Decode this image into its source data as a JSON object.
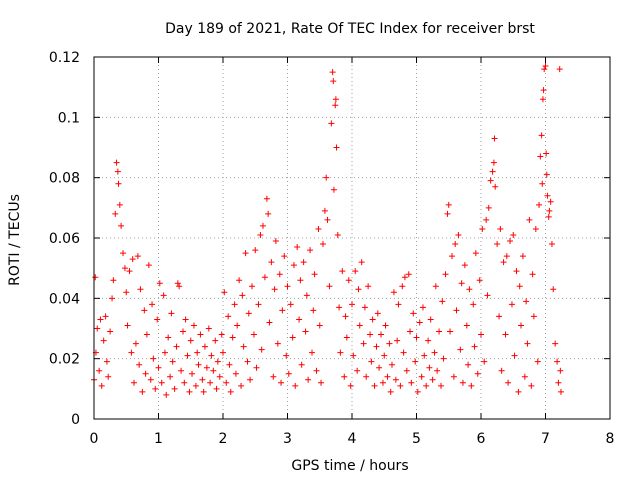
{
  "chart_data": {
    "type": "scatter",
    "title": "Day 189 of 2021, Rate Of TEC Index for receiver brst",
    "xlabel": "GPS time / hours",
    "ylabel": "ROTI / TECUs",
    "xlim": [
      0,
      8
    ],
    "ylim": [
      0,
      0.12
    ],
    "xticks": [
      "0",
      "1",
      "2",
      "3",
      "4",
      "5",
      "6",
      "7",
      "8"
    ],
    "yticks": [
      "0",
      "0.02",
      "0.04",
      "0.06",
      "0.08",
      "0.1",
      "0.12"
    ],
    "grid": true,
    "marker": "+",
    "color": "#ff0000",
    "series": [
      {
        "points": [
          [
            0.0,
            0.013
          ],
          [
            0.02,
            0.047
          ],
          [
            0.03,
            0.022
          ],
          [
            0.05,
            0.03
          ],
          [
            0.08,
            0.016
          ],
          [
            0.1,
            0.033
          ],
          [
            0.12,
            0.011
          ],
          [
            0.15,
            0.026
          ],
          [
            0.18,
            0.034
          ],
          [
            0.2,
            0.019
          ],
          [
            0.22,
            0.014
          ],
          [
            0.25,
            0.029
          ],
          [
            0.28,
            0.04
          ],
          [
            0.3,
            0.046
          ],
          [
            0.33,
            0.068
          ],
          [
            0.35,
            0.085
          ],
          [
            0.37,
            0.082
          ],
          [
            0.38,
            0.078
          ],
          [
            0.4,
            0.071
          ],
          [
            0.42,
            0.064
          ],
          [
            0.45,
            0.055
          ],
          [
            0.48,
            0.05
          ],
          [
            0.5,
            0.042
          ],
          [
            0.52,
            0.031
          ],
          [
            0.55,
            0.049
          ],
          [
            0.58,
            0.022
          ],
          [
            0.6,
            0.053
          ],
          [
            0.62,
            0.012
          ],
          [
            0.65,
            0.025
          ],
          [
            0.68,
            0.054
          ],
          [
            0.7,
            0.018
          ],
          [
            0.72,
            0.043
          ],
          [
            0.75,
            0.009
          ],
          [
            0.78,
            0.036
          ],
          [
            0.8,
            0.015
          ],
          [
            0.82,
            0.028
          ],
          [
            0.85,
            0.051
          ],
          [
            0.88,
            0.013
          ],
          [
            0.9,
            0.038
          ],
          [
            0.92,
            0.02
          ],
          [
            0.95,
            0.01
          ],
          [
            0.98,
            0.033
          ],
          [
            1.0,
            0.017
          ],
          [
            1.02,
            0.045
          ],
          [
            1.05,
            0.012
          ],
          [
            1.08,
            0.041
          ],
          [
            1.1,
            0.022
          ],
          [
            1.12,
            0.008
          ],
          [
            1.15,
            0.027
          ],
          [
            1.18,
            0.014
          ],
          [
            1.2,
            0.035
          ],
          [
            1.22,
            0.019
          ],
          [
            1.25,
            0.01
          ],
          [
            1.28,
            0.024
          ],
          [
            1.3,
            0.045
          ],
          [
            1.32,
            0.044
          ],
          [
            1.35,
            0.016
          ],
          [
            1.38,
            0.029
          ],
          [
            1.4,
            0.012
          ],
          [
            1.42,
            0.033
          ],
          [
            1.45,
            0.021
          ],
          [
            1.48,
            0.009
          ],
          [
            1.5,
            0.026
          ],
          [
            1.52,
            0.015
          ],
          [
            1.55,
            0.031
          ],
          [
            1.58,
            0.011
          ],
          [
            1.6,
            0.022
          ],
          [
            1.62,
            0.018
          ],
          [
            1.65,
            0.028
          ],
          [
            1.68,
            0.013
          ],
          [
            1.7,
            0.009
          ],
          [
            1.72,
            0.024
          ],
          [
            1.75,
            0.017
          ],
          [
            1.78,
            0.03
          ],
          [
            1.8,
            0.012
          ],
          [
            1.82,
            0.021
          ],
          [
            1.85,
            0.016
          ],
          [
            1.88,
            0.026
          ],
          [
            1.9,
            0.01
          ],
          [
            1.92,
            0.019
          ],
          [
            1.95,
            0.014
          ],
          [
            1.98,
            0.028
          ],
          [
            2.0,
            0.022
          ],
          [
            2.02,
            0.042
          ],
          [
            2.05,
            0.012
          ],
          [
            2.08,
            0.034
          ],
          [
            2.1,
            0.018
          ],
          [
            2.12,
            0.009
          ],
          [
            2.15,
            0.027
          ],
          [
            2.18,
            0.038
          ],
          [
            2.2,
            0.015
          ],
          [
            2.22,
            0.031
          ],
          [
            2.25,
            0.046
          ],
          [
            2.28,
            0.011
          ],
          [
            2.3,
            0.041
          ],
          [
            2.32,
            0.024
          ],
          [
            2.35,
            0.055
          ],
          [
            2.38,
            0.019
          ],
          [
            2.4,
            0.035
          ],
          [
            2.42,
            0.013
          ],
          [
            2.45,
            0.044
          ],
          [
            2.48,
            0.028
          ],
          [
            2.5,
            0.056
          ],
          [
            2.52,
            0.017
          ],
          [
            2.55,
            0.038
          ],
          [
            2.58,
            0.061
          ],
          [
            2.6,
            0.023
          ],
          [
            2.62,
            0.064
          ],
          [
            2.65,
            0.047
          ],
          [
            2.68,
            0.073
          ],
          [
            2.7,
            0.068
          ],
          [
            2.72,
            0.032
          ],
          [
            2.75,
            0.052
          ],
          [
            2.78,
            0.014
          ],
          [
            2.8,
            0.043
          ],
          [
            2.82,
            0.059
          ],
          [
            2.85,
            0.025
          ],
          [
            2.88,
            0.048
          ],
          [
            2.9,
            0.012
          ],
          [
            2.92,
            0.036
          ],
          [
            2.95,
            0.054
          ],
          [
            2.98,
            0.021
          ],
          [
            3.0,
            0.044
          ],
          [
            3.02,
            0.015
          ],
          [
            3.05,
            0.038
          ],
          [
            3.08,
            0.027
          ],
          [
            3.1,
            0.051
          ],
          [
            3.12,
            0.011
          ],
          [
            3.15,
            0.057
          ],
          [
            3.18,
            0.033
          ],
          [
            3.2,
            0.046
          ],
          [
            3.22,
            0.018
          ],
          [
            3.25,
            0.052
          ],
          [
            3.28,
            0.029
          ],
          [
            3.3,
            0.041
          ],
          [
            3.32,
            0.013
          ],
          [
            3.35,
            0.056
          ],
          [
            3.38,
            0.022
          ],
          [
            3.4,
            0.036
          ],
          [
            3.42,
            0.048
          ],
          [
            3.45,
            0.016
          ],
          [
            3.48,
            0.063
          ],
          [
            3.5,
            0.031
          ],
          [
            3.52,
            0.012
          ],
          [
            3.55,
            0.058
          ],
          [
            3.58,
            0.069
          ],
          [
            3.6,
            0.08
          ],
          [
            3.62,
            0.066
          ],
          [
            3.65,
            0.044
          ],
          [
            3.68,
            0.098
          ],
          [
            3.7,
            0.115
          ],
          [
            3.71,
            0.112
          ],
          [
            3.72,
            0.076
          ],
          [
            3.74,
            0.104
          ],
          [
            3.75,
            0.106
          ],
          [
            3.76,
            0.09
          ],
          [
            3.78,
            0.061
          ],
          [
            3.8,
            0.037
          ],
          [
            3.82,
            0.022
          ],
          [
            3.85,
            0.049
          ],
          [
            3.88,
            0.014
          ],
          [
            3.9,
            0.034
          ],
          [
            3.92,
            0.027
          ],
          [
            3.95,
            0.046
          ],
          [
            3.98,
            0.011
          ],
          [
            4.0,
            0.038
          ],
          [
            4.02,
            0.021
          ],
          [
            4.05,
            0.049
          ],
          [
            4.08,
            0.016
          ],
          [
            4.1,
            0.043
          ],
          [
            4.12,
            0.031
          ],
          [
            4.15,
            0.052
          ],
          [
            4.18,
            0.025
          ],
          [
            4.2,
            0.037
          ],
          [
            4.22,
            0.014
          ],
          [
            4.25,
            0.044
          ],
          [
            4.28,
            0.028
          ],
          [
            4.3,
            0.019
          ],
          [
            4.32,
            0.033
          ],
          [
            4.35,
            0.011
          ],
          [
            4.38,
            0.024
          ],
          [
            4.4,
            0.035
          ],
          [
            4.42,
            0.017
          ],
          [
            4.45,
            0.028
          ],
          [
            4.48,
            0.012
          ],
          [
            4.5,
            0.021
          ],
          [
            4.52,
            0.031
          ],
          [
            4.55,
            0.014
          ],
          [
            4.58,
            0.025
          ],
          [
            4.6,
            0.009
          ],
          [
            4.62,
            0.018
          ],
          [
            4.65,
            0.042
          ],
          [
            4.68,
            0.013
          ],
          [
            4.7,
            0.026
          ],
          [
            4.72,
            0.038
          ],
          [
            4.75,
            0.011
          ],
          [
            4.78,
            0.044
          ],
          [
            4.8,
            0.022
          ],
          [
            4.82,
            0.047
          ],
          [
            4.85,
            0.016
          ],
          [
            4.88,
            0.048
          ],
          [
            4.9,
            0.029
          ],
          [
            4.92,
            0.012
          ],
          [
            4.95,
            0.035
          ],
          [
            4.98,
            0.019
          ],
          [
            5.0,
            0.027
          ],
          [
            5.02,
            0.009
          ],
          [
            5.05,
            0.032
          ],
          [
            5.08,
            0.014
          ],
          [
            5.1,
            0.037
          ],
          [
            5.12,
            0.021
          ],
          [
            5.15,
            0.011
          ],
          [
            5.18,
            0.026
          ],
          [
            5.2,
            0.017
          ],
          [
            5.22,
            0.033
          ],
          [
            5.25,
            0.013
          ],
          [
            5.28,
            0.022
          ],
          [
            5.3,
            0.044
          ],
          [
            5.32,
            0.016
          ],
          [
            5.35,
            0.029
          ],
          [
            5.38,
            0.011
          ],
          [
            5.4,
            0.039
          ],
          [
            5.42,
            0.02
          ],
          [
            5.45,
            0.048
          ],
          [
            5.48,
            0.068
          ],
          [
            5.5,
            0.071
          ],
          [
            5.52,
            0.029
          ],
          [
            5.55,
            0.054
          ],
          [
            5.58,
            0.014
          ],
          [
            5.6,
            0.058
          ],
          [
            5.62,
            0.036
          ],
          [
            5.65,
            0.061
          ],
          [
            5.68,
            0.023
          ],
          [
            5.7,
            0.045
          ],
          [
            5.72,
            0.012
          ],
          [
            5.75,
            0.051
          ],
          [
            5.78,
            0.031
          ],
          [
            5.8,
            0.018
          ],
          [
            5.82,
            0.043
          ],
          [
            5.85,
            0.011
          ],
          [
            5.88,
            0.038
          ],
          [
            5.9,
            0.024
          ],
          [
            5.92,
            0.055
          ],
          [
            5.95,
            0.015
          ],
          [
            5.98,
            0.046
          ],
          [
            6.0,
            0.028
          ],
          [
            6.02,
            0.063
          ],
          [
            6.05,
            0.019
          ],
          [
            6.08,
            0.066
          ],
          [
            6.1,
            0.041
          ],
          [
            6.12,
            0.07
          ],
          [
            6.15,
            0.079
          ],
          [
            6.18,
            0.082
          ],
          [
            6.2,
            0.085
          ],
          [
            6.21,
            0.093
          ],
          [
            6.22,
            0.077
          ],
          [
            6.25,
            0.058
          ],
          [
            6.28,
            0.034
          ],
          [
            6.3,
            0.063
          ],
          [
            6.32,
            0.016
          ],
          [
            6.35,
            0.052
          ],
          [
            6.38,
            0.028
          ],
          [
            6.4,
            0.054
          ],
          [
            6.42,
            0.012
          ],
          [
            6.45,
            0.059
          ],
          [
            6.48,
            0.038
          ],
          [
            6.5,
            0.061
          ],
          [
            6.52,
            0.021
          ],
          [
            6.55,
            0.049
          ],
          [
            6.58,
            0.009
          ],
          [
            6.6,
            0.044
          ],
          [
            6.62,
            0.031
          ],
          [
            6.65,
            0.054
          ],
          [
            6.68,
            0.014
          ],
          [
            6.7,
            0.039
          ],
          [
            6.72,
            0.025
          ],
          [
            6.75,
            0.066
          ],
          [
            6.78,
            0.011
          ],
          [
            6.8,
            0.048
          ],
          [
            6.82,
            0.034
          ],
          [
            6.85,
            0.063
          ],
          [
            6.88,
            0.019
          ],
          [
            6.9,
            0.071
          ],
          [
            6.92,
            0.087
          ],
          [
            6.94,
            0.094
          ],
          [
            6.95,
            0.078
          ],
          [
            6.96,
            0.106
          ],
          [
            6.97,
            0.109
          ],
          [
            6.98,
            0.116
          ],
          [
            7.0,
            0.117
          ],
          [
            7.01,
            0.088
          ],
          [
            7.02,
            0.081
          ],
          [
            7.03,
            0.074
          ],
          [
            7.05,
            0.067
          ],
          [
            7.06,
            0.069
          ],
          [
            7.08,
            0.072
          ],
          [
            7.1,
            0.058
          ],
          [
            7.12,
            0.043
          ],
          [
            7.15,
            0.025
          ],
          [
            7.18,
            0.019
          ],
          [
            7.2,
            0.012
          ],
          [
            7.22,
            0.116
          ],
          [
            7.23,
            0.016
          ],
          [
            7.24,
            0.009
          ]
        ]
      }
    ]
  }
}
